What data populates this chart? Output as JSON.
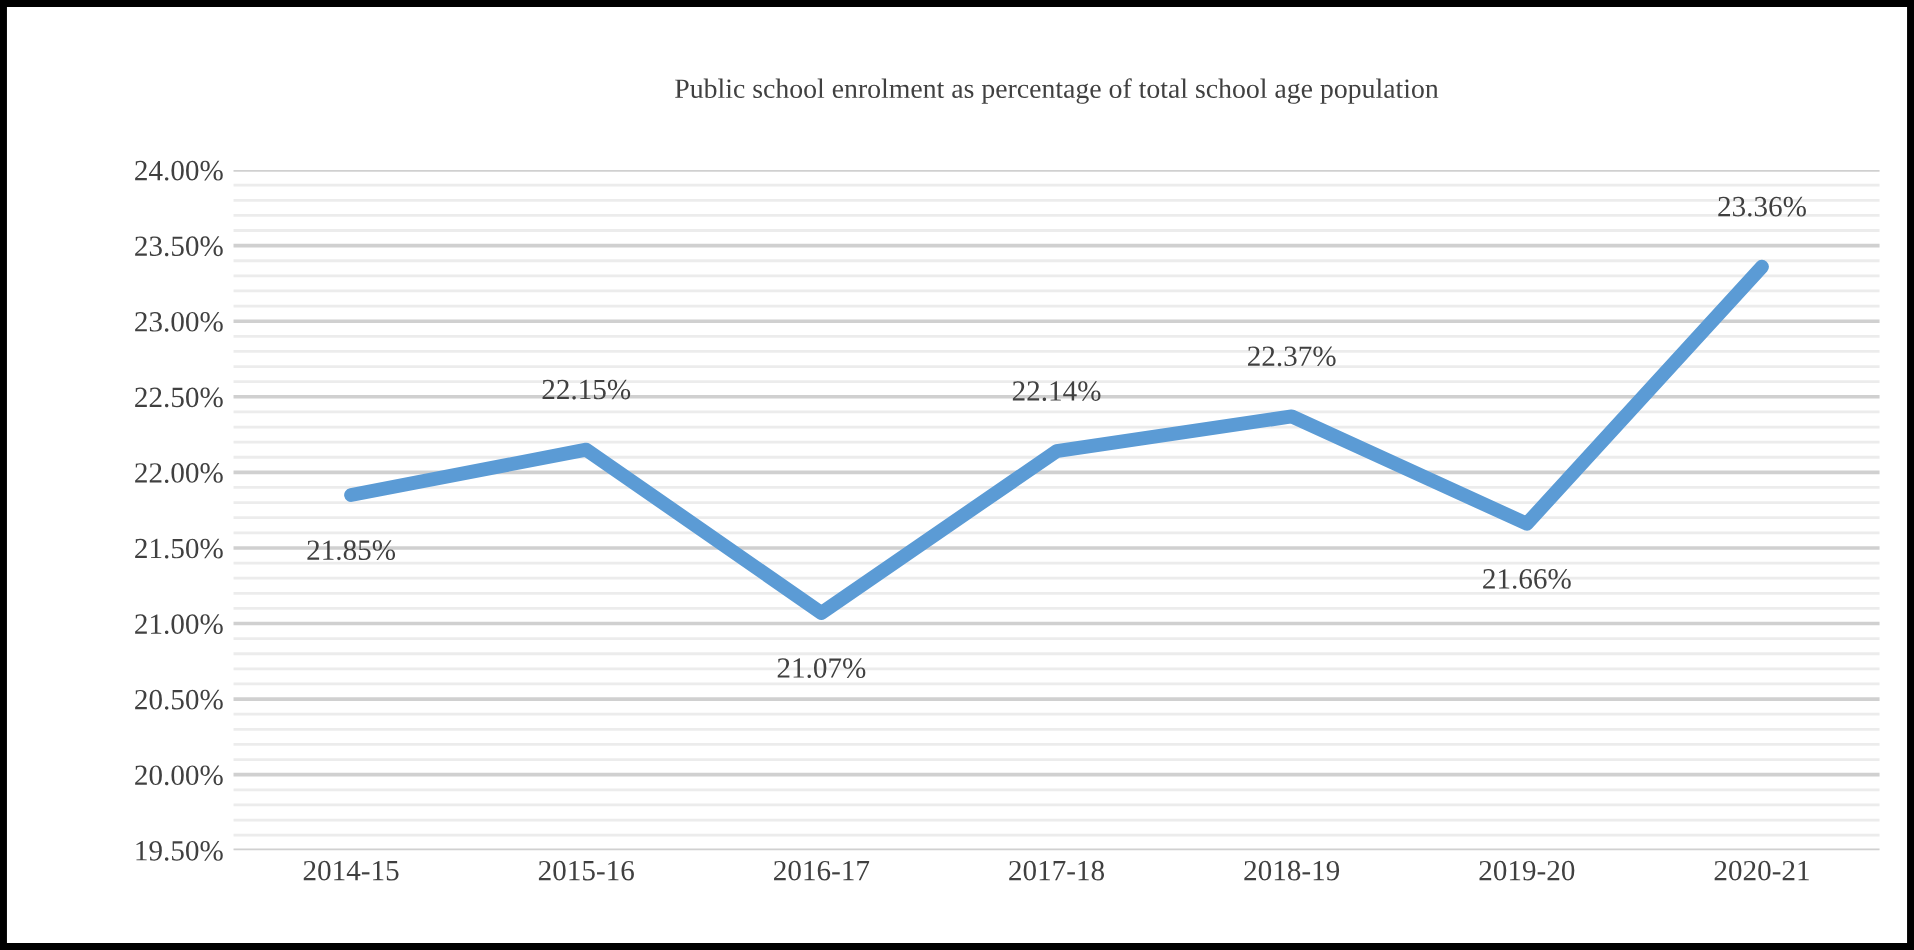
{
  "chart_data": {
    "type": "line",
    "title": "Public school enrolment as percentage of total school age population",
    "categories": [
      "2014-15",
      "2015-16",
      "2016-17",
      "2017-18",
      "2018-19",
      "2019-20",
      "2020-21"
    ],
    "series": [
      {
        "color": "#5b9bd5",
        "values": [
          21.85,
          22.15,
          21.07,
          22.14,
          22.37,
          21.66,
          23.36
        ],
        "value_labels": [
          "21.85%",
          "22.15%",
          "21.07%",
          "22.14%",
          "22.37%",
          "21.66%",
          "23.36%"
        ]
      }
    ],
    "ylim": [
      19.5,
      24.0
    ],
    "yticks": [
      {
        "value": 19.5,
        "label": "19.50%"
      },
      {
        "value": 20.0,
        "label": "20.00%"
      },
      {
        "value": 20.5,
        "label": "20.50%"
      },
      {
        "value": 21.0,
        "label": "21.00%"
      },
      {
        "value": 21.5,
        "label": "21.50%"
      },
      {
        "value": 22.0,
        "label": "22.00%"
      },
      {
        "value": 22.5,
        "label": "22.50%"
      },
      {
        "value": 23.0,
        "label": "23.00%"
      },
      {
        "value": 23.5,
        "label": "23.50%"
      },
      {
        "value": 24.0,
        "label": "24.00%"
      }
    ],
    "grid": "y",
    "marker": "none",
    "line_style": "solid"
  }
}
